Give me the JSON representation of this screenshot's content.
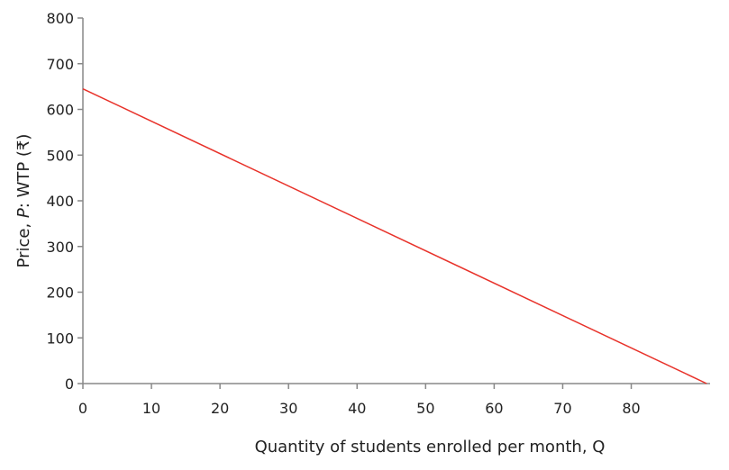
{
  "chart_data": {
    "type": "line",
    "title": "",
    "xlabel": "Quantity of students enrolled per month, Q",
    "ylabel_parts": [
      "Price, ",
      "P",
      ": WTP (₹)"
    ],
    "xlim": [
      0,
      91.5
    ],
    "ylim": [
      0,
      800
    ],
    "xticks": [
      0,
      10,
      20,
      30,
      40,
      50,
      60,
      70,
      80
    ],
    "yticks": [
      0,
      100,
      200,
      300,
      400,
      500,
      600,
      700,
      800
    ],
    "grid": false,
    "series": [
      {
        "color": "#e8322a",
        "points": [
          [
            0,
            645
          ],
          [
            91,
            0
          ]
        ]
      }
    ],
    "axis_color": "#888888"
  }
}
